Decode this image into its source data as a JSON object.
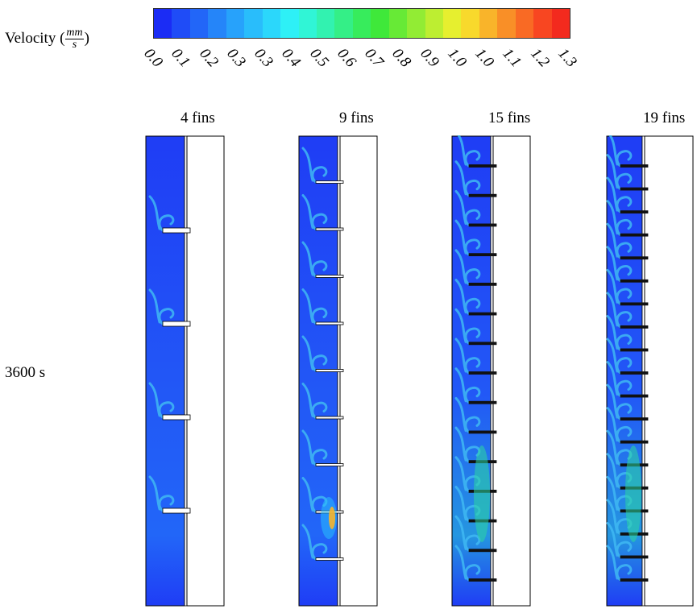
{
  "legend": {
    "title_prefix": "Velocity (",
    "unit_numerator": "mm",
    "unit_denominator": "s",
    "title_suffix": ")",
    "colors": [
      "#1b2cf5",
      "#1f4cf7",
      "#2266f8",
      "#2585f9",
      "#27a2fb",
      "#29bdfb",
      "#2bd7fb",
      "#2ef0f6",
      "#30f5d6",
      "#32f2b0",
      "#34ef87",
      "#37ec5c",
      "#3fe83a",
      "#67ea36",
      "#92ec34",
      "#bdee31",
      "#e6ef2f",
      "#f8d92c",
      "#f9b42a",
      "#f98f27",
      "#f96a24",
      "#f84621",
      "#f32a1e"
    ],
    "ticks": [
      "0.0",
      "0.1",
      "0.2",
      "0.3",
      "0.3",
      "0.4",
      "0.5",
      "0.6",
      "0.7",
      "0.8",
      "0.9",
      "1.0",
      "1.0",
      "1.1",
      "1.2",
      "1.3"
    ]
  },
  "time_label": "3600 s",
  "panels": [
    {
      "label": "4 fins",
      "fins": 4
    },
    {
      "label": "9 fins",
      "fins": 9
    },
    {
      "label": "15 fins",
      "fins": 15
    },
    {
      "label": "19 fins",
      "fins": 19
    }
  ]
}
